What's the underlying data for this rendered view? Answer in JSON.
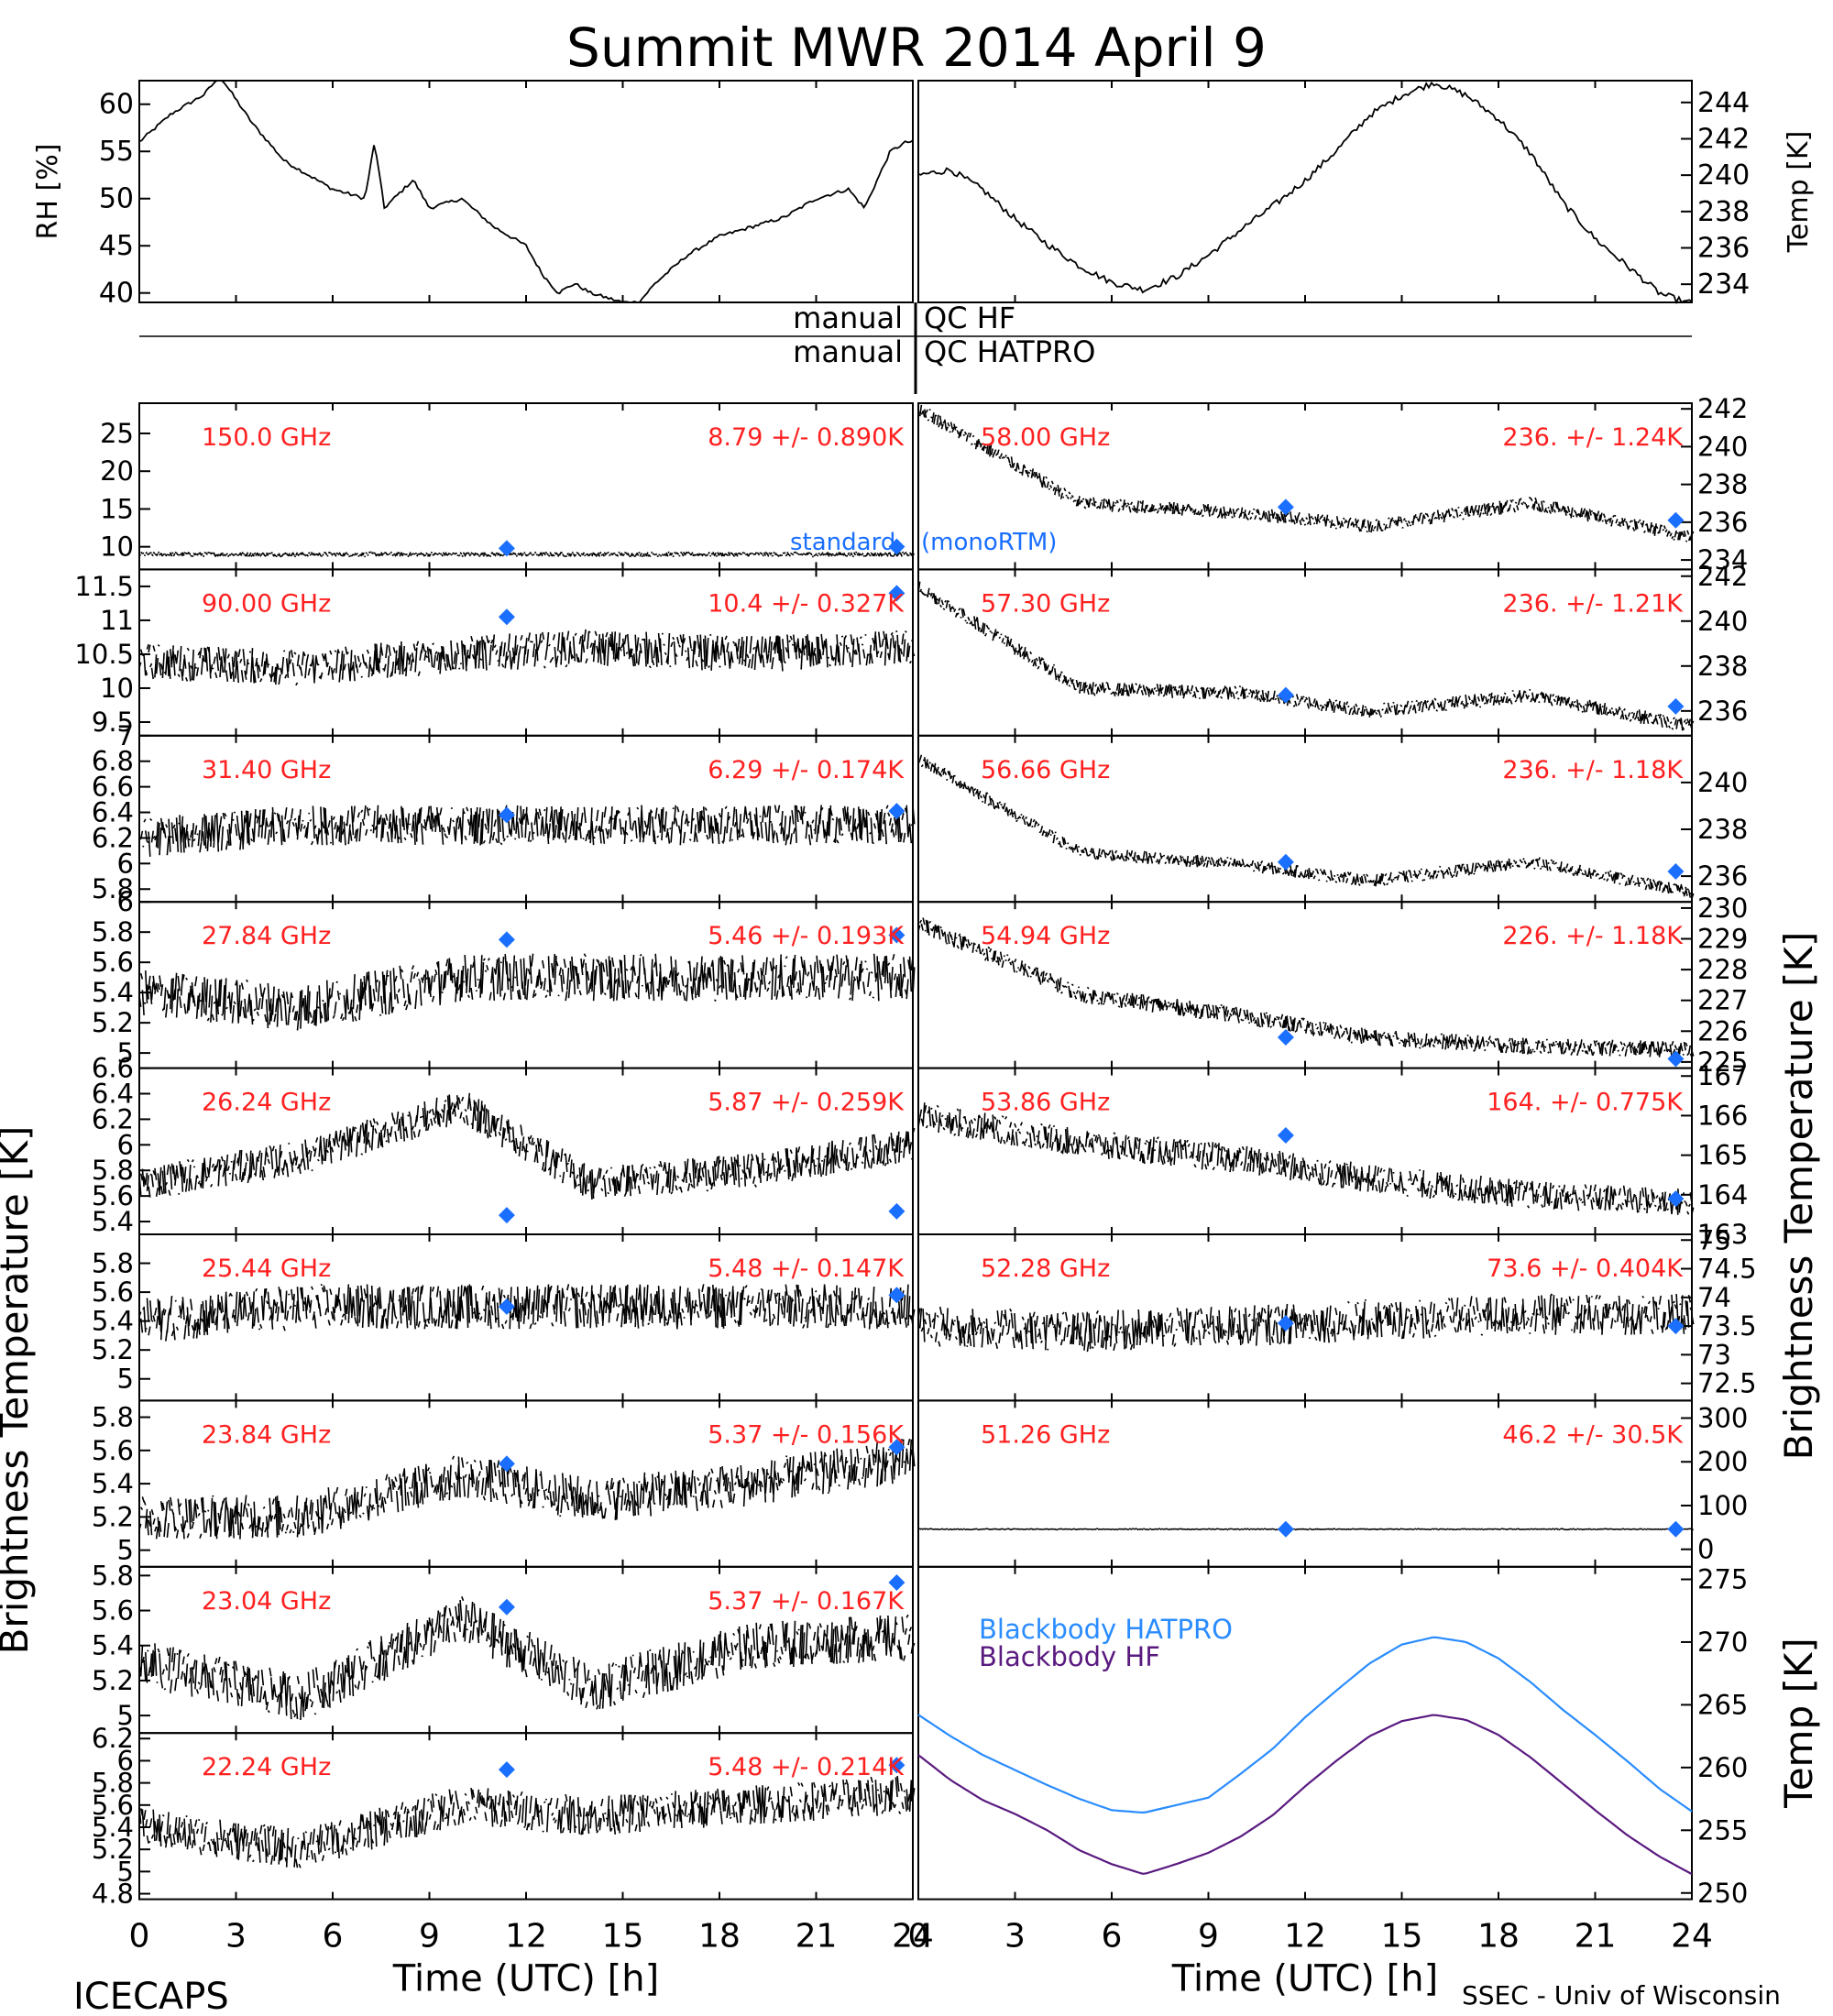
{
  "title": "Summit MWR 2014 April  9",
  "footer_left": "ICECAPS",
  "footer_right": "SSEC - Univ of Wisconsin",
  "colors": {
    "label": "#ff2020",
    "model": "#1a6fff",
    "data": "#000000",
    "bb_hf": "#5a1a80",
    "bb_hatpro": "#2a8cff"
  },
  "x_axis": {
    "label": "Time (UTC) [h]",
    "ticks": [
      0,
      3,
      6,
      9,
      12,
      15,
      18,
      21,
      24
    ],
    "range": [
      0,
      24
    ]
  },
  "met": {
    "rh": {
      "ylabel": "RH [%]",
      "ticks": [
        40,
        45,
        50,
        55,
        60
      ],
      "range": [
        39,
        62.5
      ],
      "x": [
        0,
        1,
        2,
        2.5,
        3.5,
        4.5,
        6,
        7,
        7.3,
        7.6,
        8.5,
        9,
        10,
        11,
        12,
        12.5,
        13,
        13.5,
        14,
        15,
        15.5,
        16,
        17,
        18,
        19,
        20,
        21,
        22,
        22.5,
        23.3,
        23.8
      ],
      "y": [
        56,
        59,
        61,
        63,
        58,
        54,
        51,
        50,
        56,
        49,
        52,
        49,
        50,
        47,
        45,
        42,
        40,
        41,
        40,
        39,
        39,
        41,
        44,
        46,
        47,
        48,
        50,
        51,
        49,
        55,
        56
      ]
    },
    "temp": {
      "ylabel": "Temp [K]",
      "ticks": [
        234,
        236,
        238,
        240,
        242,
        244
      ],
      "range": [
        233,
        245.2
      ],
      "x": [
        0,
        1,
        2,
        3,
        4,
        5,
        6,
        7,
        8,
        9,
        10,
        11,
        12,
        13,
        14,
        15,
        16,
        17,
        18,
        19,
        20,
        21,
        22,
        23,
        23.8
      ],
      "y": [
        240,
        240.3,
        239.2,
        237.6,
        236.2,
        235,
        234.1,
        233.7,
        234.4,
        235.6,
        237,
        238.3,
        239.7,
        241.4,
        243.3,
        244.4,
        245.1,
        244.4,
        243.1,
        241.2,
        238.5,
        236.5,
        235,
        233.5,
        233
      ]
    }
  },
  "qc": {
    "lines": [
      "manual",
      "QC HF",
      "manual",
      "QC HATPRO"
    ]
  },
  "model_label": "(monoRTM)",
  "model_label_prefix": "standard",
  "bt_ylabel": "Brightness Temperature [K]",
  "bb_ylabel": "Temp [K]",
  "left_panels": [
    {
      "freq": "150.0 GHz",
      "stat": "8.79 +/- 0.890K",
      "ticks": [
        10,
        15,
        20,
        25
      ],
      "range": [
        7,
        29
      ],
      "base": [
        9,
        9,
        9,
        9,
        9,
        9
      ],
      "noise": 0.7,
      "d1": 9.8,
      "d2": 10.0
    },
    {
      "freq": "90.00 GHz",
      "stat": "10.4 +/- 0.327K",
      "ticks": [
        9.5,
        10.0,
        10.5,
        11.0,
        11.5
      ],
      "range": [
        9.3,
        11.75
      ],
      "base": [
        10.4,
        10.3,
        10.5,
        10.6,
        10.5,
        10.6
      ],
      "noise": 0.6,
      "d1": 11.05,
      "d2": 11.4
    },
    {
      "freq": "31.40 GHz",
      "stat": "6.29 +/- 0.174K",
      "ticks": [
        5.8,
        6.0,
        6.2,
        6.4,
        6.6,
        6.8,
        7.0
      ],
      "range": [
        5.7,
        7.0
      ],
      "base": [
        6.2,
        6.3,
        6.3,
        6.3,
        6.3,
        6.3
      ],
      "noise": 0.35,
      "d1": 6.38,
      "d2": 6.41
    },
    {
      "freq": "27.84 GHz",
      "stat": "5.46 +/- 0.193K",
      "ticks": [
        5.0,
        5.2,
        5.4,
        5.6,
        5.8,
        6.0
      ],
      "range": [
        4.9,
        6.0
      ],
      "base": [
        5.4,
        5.3,
        5.5,
        5.5,
        5.5,
        5.5
      ],
      "noise": 0.35,
      "d1": 5.75,
      "d2": 5.78
    },
    {
      "freq": "26.24 GHz",
      "stat": "5.87 +/- 0.259K",
      "ticks": [
        5.4,
        5.6,
        5.8,
        6.0,
        6.2,
        6.4,
        6.6
      ],
      "range": [
        5.3,
        6.6
      ],
      "base": [
        5.7,
        5.9,
        6.3,
        5.7,
        5.8,
        6.0
      ],
      "noise": 0.3,
      "d1": 5.45,
      "d2": 5.48
    },
    {
      "freq": "25.44 GHz",
      "stat": "5.48 +/- 0.147K",
      "ticks": [
        5.0,
        5.2,
        5.4,
        5.6,
        5.8
      ],
      "range": [
        4.85,
        6.0
      ],
      "base": [
        5.4,
        5.5,
        5.5,
        5.5,
        5.5,
        5.5
      ],
      "noise": 0.35,
      "d1": 5.5,
      "d2": 5.58
    },
    {
      "freq": "23.84 GHz",
      "stat": "5.37 +/- 0.156K",
      "ticks": [
        5.0,
        5.2,
        5.4,
        5.6,
        5.8
      ],
      "range": [
        4.9,
        5.9
      ],
      "base": [
        5.2,
        5.2,
        5.45,
        5.3,
        5.4,
        5.55
      ],
      "noise": 0.3,
      "d1": 5.52,
      "d2": 5.62
    },
    {
      "freq": "23.04 GHz",
      "stat": "5.37 +/- 0.167K",
      "ticks": [
        5.0,
        5.2,
        5.4,
        5.6,
        5.8
      ],
      "range": [
        4.9,
        5.85
      ],
      "base": [
        5.3,
        5.1,
        5.55,
        5.15,
        5.4,
        5.45
      ],
      "noise": 0.3,
      "d1": 5.62,
      "d2": 5.76
    },
    {
      "freq": "22.24 GHz",
      "stat": "5.48 +/- 0.214K",
      "ticks": [
        4.8,
        5.0,
        5.2,
        5.4,
        5.6,
        5.8,
        6.0,
        6.2
      ],
      "range": [
        4.75,
        6.25
      ],
      "base": [
        5.4,
        5.2,
        5.6,
        5.5,
        5.6,
        5.7
      ],
      "noise": 0.4,
      "d1": 5.92,
      "d2": 5.96
    }
  ],
  "right_panels": [
    {
      "freq": "58.00 GHz",
      "stat": "236. +/- 1.24K",
      "ticks": [
        234,
        236,
        238,
        240,
        242
      ],
      "range": [
        233.5,
        242.3
      ],
      "base": [
        242,
        237,
        236.5,
        235.8,
        237,
        235.2
      ],
      "noise": 0.8,
      "d1": 236.8,
      "d2": 236.1
    },
    {
      "freq": "57.30 GHz",
      "stat": "236. +/- 1.21K",
      "ticks": [
        236,
        238,
        240,
        242
      ],
      "range": [
        234.9,
        242.3
      ],
      "base": [
        241.5,
        237,
        236.8,
        236,
        236.7,
        235.3
      ],
      "noise": 0.7,
      "d1": 236.7,
      "d2": 236.2
    },
    {
      "freq": "56.66 GHz",
      "stat": "236. +/- 1.18K",
      "ticks": [
        236,
        238,
        240
      ],
      "range": [
        234.9,
        242.0
      ],
      "base": [
        241,
        237,
        236.5,
        235.8,
        236.6,
        235.3
      ],
      "noise": 0.6,
      "d1": 236.6,
      "d2": 236.2
    },
    {
      "freq": "54.94 GHz",
      "stat": "226. +/- 1.18K",
      "ticks": [
        225,
        226,
        227,
        228,
        229,
        230
      ],
      "range": [
        224.8,
        230.2
      ],
      "base": [
        229.5,
        227.2,
        226.5,
        225.8,
        225.5,
        225.4
      ],
      "noise": 0.6,
      "d1": 225.8,
      "d2": 225.1
    },
    {
      "freq": "53.86 GHz",
      "stat": "164. +/- 0.775K",
      "ticks": [
        163,
        164,
        165,
        166,
        167
      ],
      "range": [
        163,
        167.2
      ],
      "base": [
        166,
        165.3,
        164.9,
        164.4,
        164.0,
        163.8
      ],
      "noise": 0.8,
      "d1": 165.5,
      "d2": 163.9
    },
    {
      "freq": "52.28 GHz",
      "stat": "73.6 +/- 0.404K",
      "ticks": [
        72.5,
        73.0,
        73.5,
        74.0,
        74.5,
        75.0
      ],
      "range": [
        72.2,
        75.1
      ],
      "base": [
        73.5,
        73.4,
        73.5,
        73.6,
        73.7,
        73.7
      ],
      "noise": 0.8,
      "d1": 73.55,
      "d2": 73.5
    },
    {
      "freq": "51.26 GHz",
      "stat": "46.2 +/- 30.5K",
      "ticks": [
        0,
        100,
        200,
        300
      ],
      "range": [
        -40,
        340
      ],
      "base": [
        46,
        46,
        46,
        46,
        46,
        46
      ],
      "noise": 3,
      "d1": 46,
      "d2": 46
    }
  ],
  "blackbody": {
    "ticks": [
      250,
      255,
      260,
      265,
      270,
      275
    ],
    "range": [
      249.5,
      276
    ],
    "legend": [
      "Blackbody HATPRO",
      "Blackbody HF"
    ],
    "x": [
      0,
      1,
      2,
      3,
      4,
      5,
      6,
      7,
      8,
      9,
      10,
      11,
      12,
      13,
      14,
      15,
      16,
      17,
      18,
      19,
      20,
      21,
      22,
      23,
      24
    ],
    "hatpro": [
      264.2,
      262.5,
      261,
      259.8,
      258.6,
      257.5,
      256.6,
      256.4,
      257,
      257.6,
      259.5,
      261.5,
      264,
      266.2,
      268.3,
      269.8,
      270.4,
      270,
      268.7,
      266.8,
      264.6,
      262.6,
      260.5,
      258.3,
      256.5
    ],
    "hf": [
      261,
      259,
      257.4,
      256.3,
      255,
      253.4,
      252.3,
      251.5,
      252.3,
      253.2,
      254.5,
      256.2,
      258.5,
      260.6,
      262.5,
      263.7,
      264.2,
      263.8,
      262.6,
      260.8,
      258.7,
      256.6,
      254.6,
      252.9,
      251.5
    ]
  }
}
